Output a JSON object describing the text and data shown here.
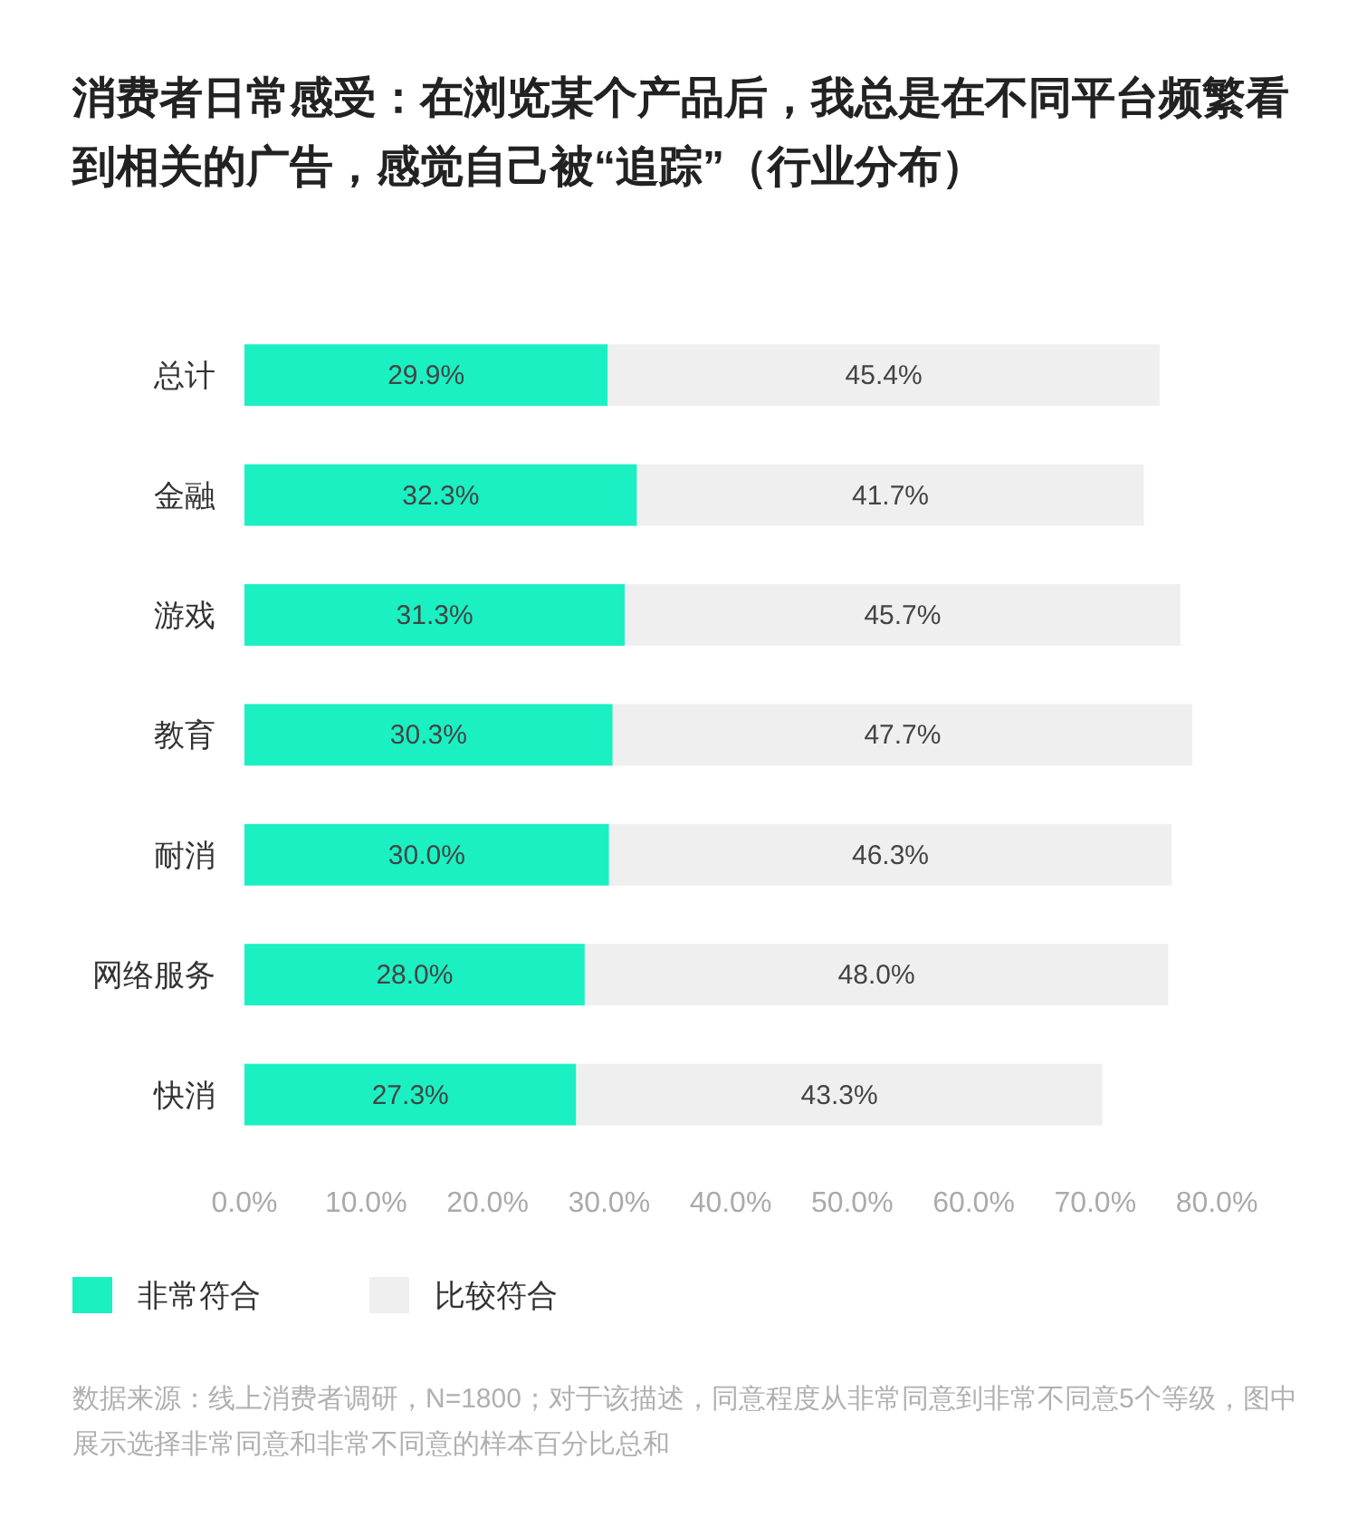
{
  "chart_data": {
    "type": "bar",
    "orientation": "horizontal",
    "stacked": true,
    "title": "消费者日常感受：在浏览某个产品后，我总是在不同平台频繁看到相关的广告，感觉自己被“追踪”（行业分布）",
    "categories": [
      "总计",
      "金融",
      "游戏",
      "教育",
      "耐消",
      "网络服务",
      "快消"
    ],
    "series": [
      {
        "name": "非常符合",
        "color": "#1bf0c3",
        "values": [
          29.9,
          32.3,
          31.3,
          30.3,
          30.0,
          28.0,
          27.3
        ],
        "value_labels": [
          "29.9%",
          "32.3%",
          "31.3%",
          "30.3%",
          "30.0%",
          "28.0%",
          "27.3%"
        ]
      },
      {
        "name": "比较符合",
        "color": "#efefef",
        "values": [
          45.4,
          41.7,
          45.7,
          47.7,
          46.3,
          48.0,
          43.3
        ],
        "value_labels": [
          "45.4%",
          "41.7%",
          "45.7%",
          "47.7%",
          "46.3%",
          "48.0%",
          "43.3%"
        ]
      }
    ],
    "xlim": [
      0,
      80
    ],
    "xticks": [
      {
        "value": 0,
        "label": "0.0%"
      },
      {
        "value": 10,
        "label": "10.0%"
      },
      {
        "value": 20,
        "label": "20.0%"
      },
      {
        "value": 30,
        "label": "30.0%"
      },
      {
        "value": 40,
        "label": "40.0%"
      },
      {
        "value": 50,
        "label": "50.0%"
      },
      {
        "value": 60,
        "label": "60.0%"
      },
      {
        "value": 70,
        "label": "70.0%"
      },
      {
        "value": 80,
        "label": "80.0%"
      }
    ],
    "legend": "bottom left",
    "annotations": [
      "数据来源：线上消费者调研，N=1800；对于该描述，同意程度从非常同意到非常不同意5个等级，图中展示选择非常同意和非常不同意的样本百分比总和"
    ]
  }
}
